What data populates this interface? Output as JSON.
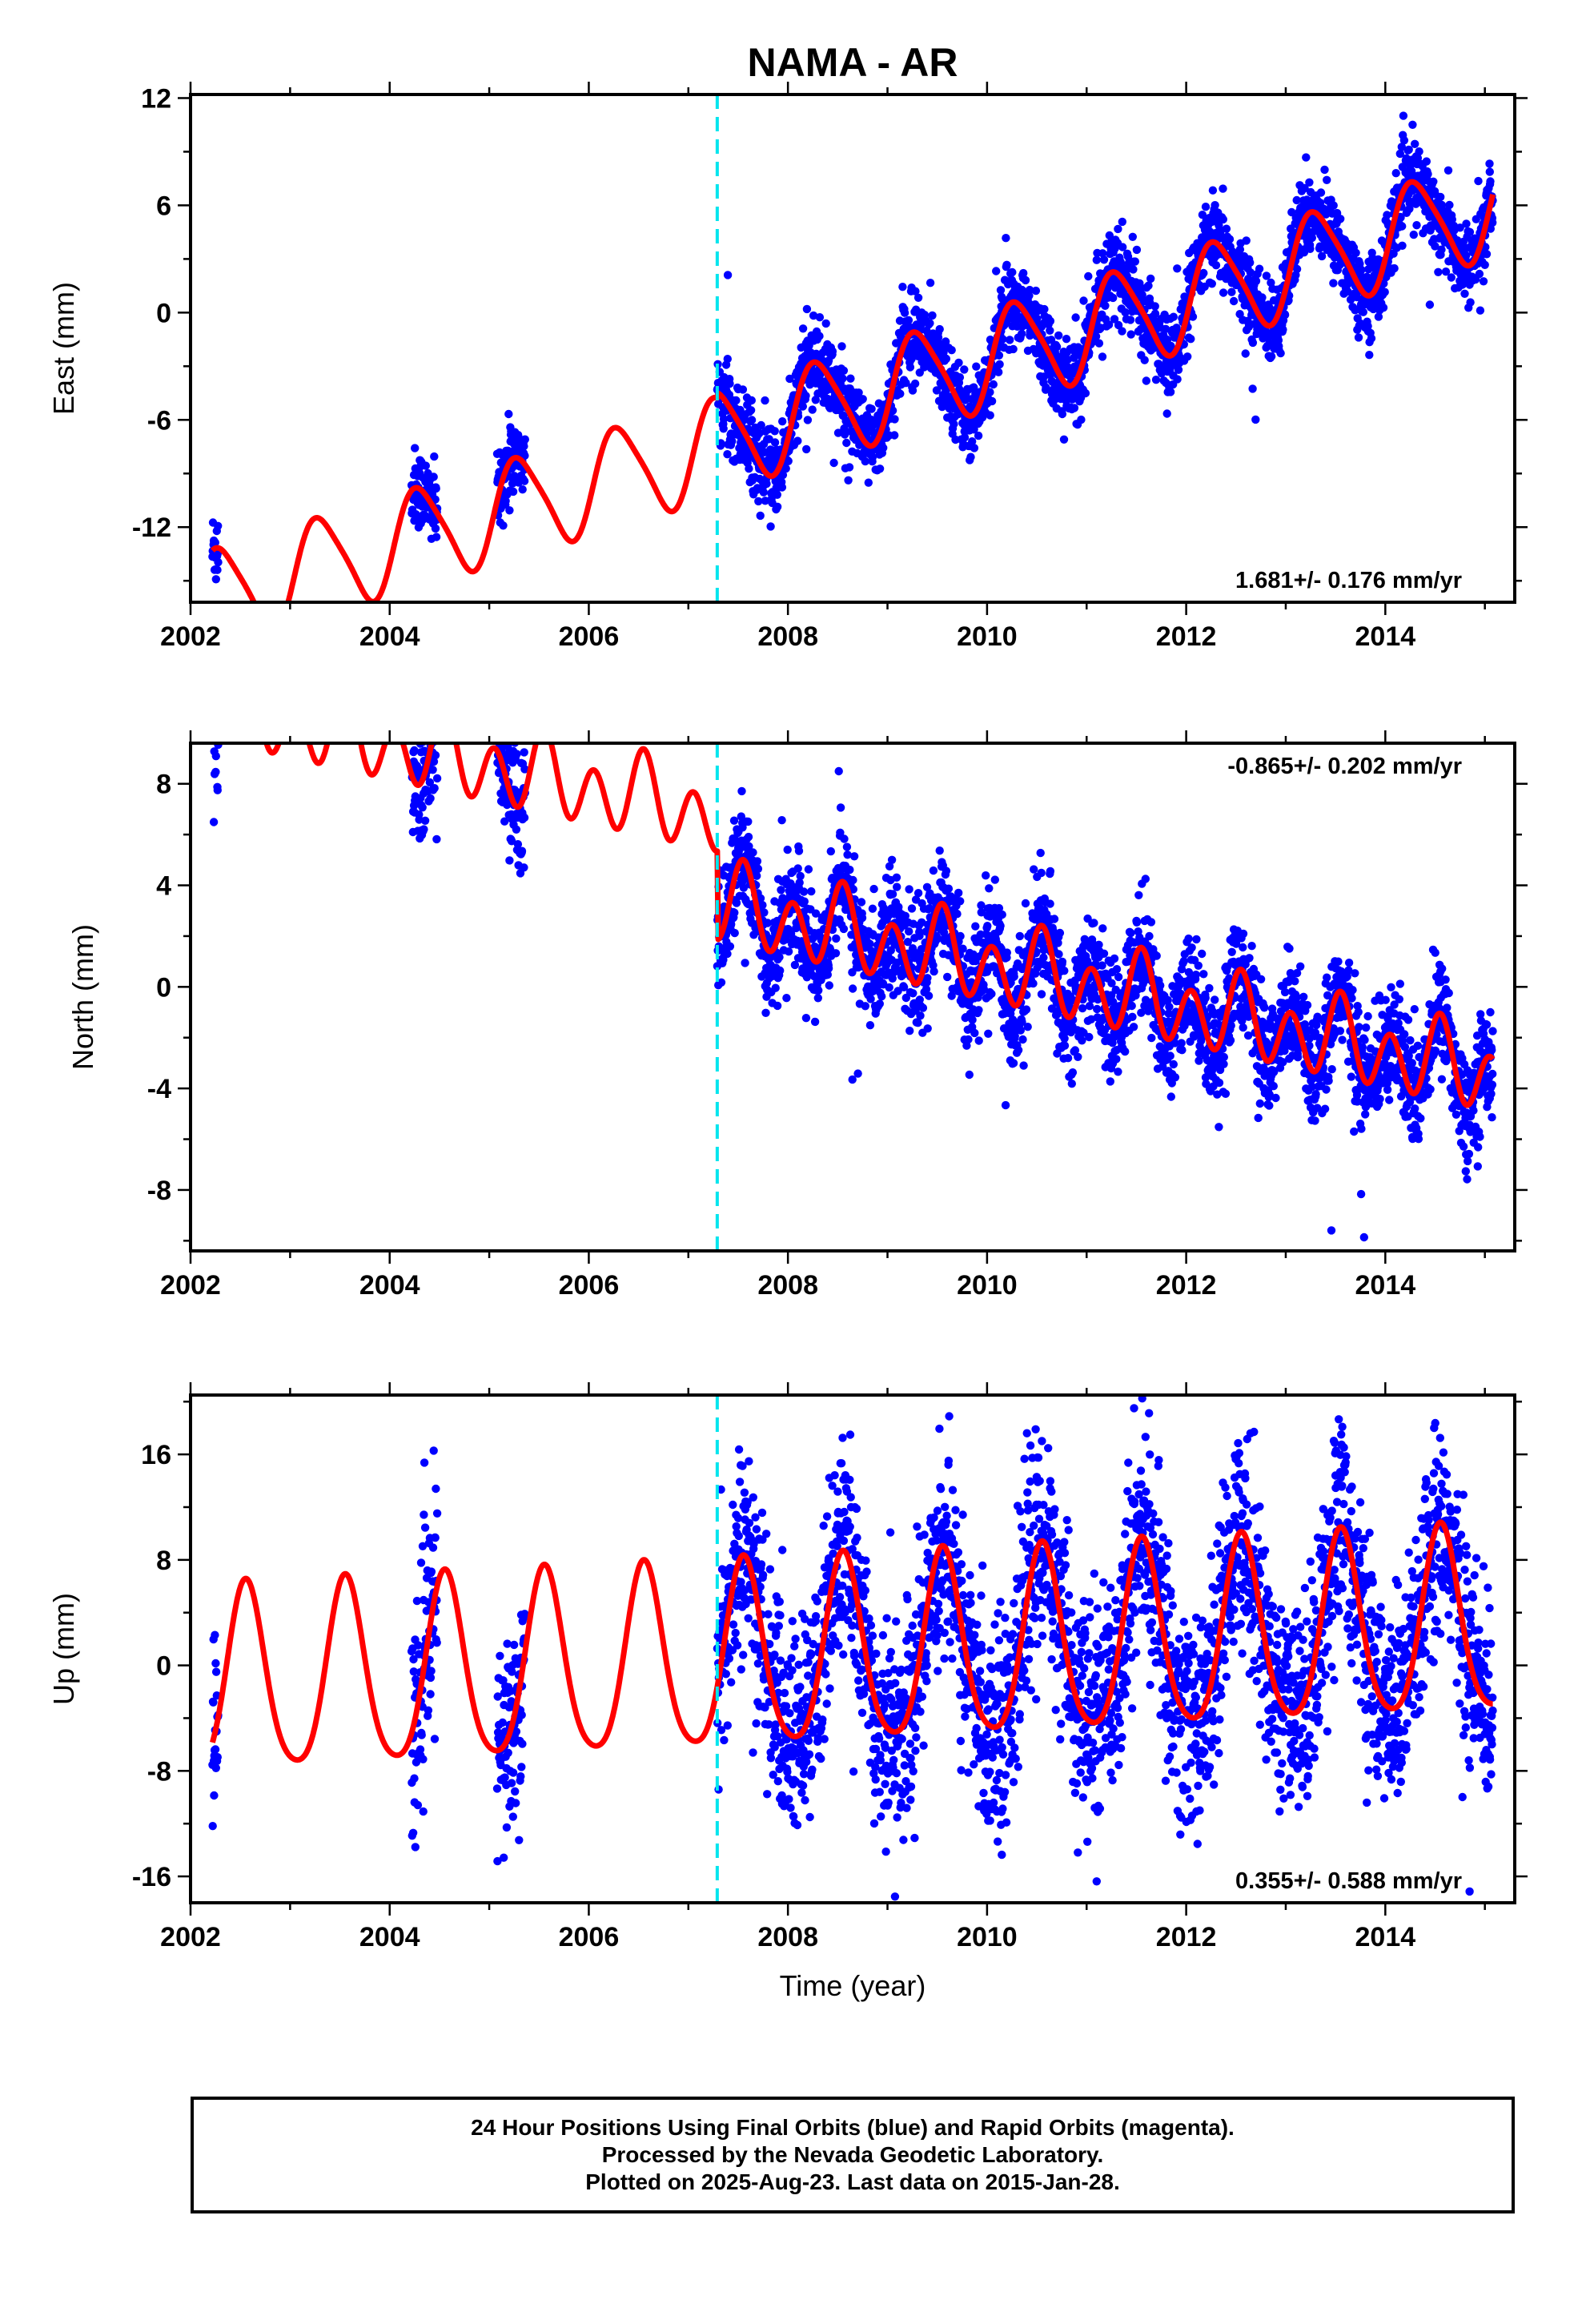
{
  "chart_data": [
    {
      "type": "scatter",
      "title": "NAMA - AR",
      "ylabel": "East (mm)",
      "xlabel": "",
      "xlim": [
        2002.0,
        2015.3
      ],
      "ylim": [
        -16.2,
        12.2
      ],
      "x_ticks": [
        2002,
        2004,
        2006,
        2008,
        2010,
        2012,
        2014
      ],
      "y_ticks": [
        -12,
        -6,
        0,
        6,
        12
      ],
      "rate_text": "1.681+/- 0.176 mm/yr",
      "rate_position": "bottom-right",
      "event_line_year": 2007.29,
      "colors": {
        "points": "#0000ff",
        "fit": "#ff0000",
        "event": "#00e5ee"
      },
      "fit_model": {
        "t0": 2010.0,
        "intercept": -2.6,
        "rate": 1.681,
        "pre_event_offset": -0.3,
        "annual_sin": 2.55,
        "annual_cos": -0.9,
        "semiannual_sin": 0.4,
        "semiannual_cos": -0.2
      },
      "data_segments": [
        {
          "start": 2002.22,
          "end": 2002.28,
          "noise": 1.1
        },
        {
          "start": 2004.22,
          "end": 2004.48,
          "noise": 1.1
        },
        {
          "start": 2005.08,
          "end": 2005.36,
          "noise": 1.1
        },
        {
          "start": 2007.29,
          "end": 2015.08,
          "noise": 1.1
        }
      ]
    },
    {
      "type": "scatter",
      "title": "",
      "ylabel": "North (mm)",
      "xlabel": "",
      "xlim": [
        2002.0,
        2015.3
      ],
      "ylim": [
        -10.4,
        9.6
      ],
      "x_ticks": [
        2002,
        2004,
        2006,
        2008,
        2010,
        2012,
        2014
      ],
      "y_ticks": [
        -8,
        -4,
        0,
        4,
        8
      ],
      "rate_text": "-0.865+/- 0.202 mm/yr",
      "rate_position": "top-right",
      "event_line_year": 2007.29,
      "colors": {
        "points": "#0000ff",
        "fit": "#ff0000",
        "event": "#00e5ee"
      },
      "fit_model": {
        "t0": 2010.0,
        "intercept": 0.9,
        "rate": -0.865,
        "pre_event_offset": 3.5,
        "annual_sin": -0.2,
        "annual_cos": -0.6,
        "semiannual_sin": 0.8,
        "semiannual_cos": 1.1
      },
      "data_segments": [
        {
          "start": 2002.22,
          "end": 2002.28,
          "noise": 1.4
        },
        {
          "start": 2004.22,
          "end": 2004.48,
          "noise": 1.4
        },
        {
          "start": 2005.08,
          "end": 2005.36,
          "noise": 1.4
        },
        {
          "start": 2007.29,
          "end": 2015.08,
          "noise": 1.1
        }
      ]
    },
    {
      "type": "scatter",
      "title": "",
      "ylabel": "Up (mm)",
      "xlabel": "Time (year)",
      "xlim": [
        2002.0,
        2015.3
      ],
      "ylim": [
        -18.0,
        20.5
      ],
      "x_ticks": [
        2002,
        2004,
        2006,
        2008,
        2010,
        2012,
        2014
      ],
      "y_ticks": [
        -16,
        -8,
        0,
        8,
        16
      ],
      "rate_text": "0.355+/- 0.588 mm/yr",
      "rate_position": "bottom-right",
      "event_line_year": 2007.29,
      "colors": {
        "points": "#0000ff",
        "fit": "#ff0000",
        "event": "#00e5ee"
      },
      "fit_model": {
        "t0": 2010.0,
        "intercept": 1.2,
        "rate": 0.355,
        "pre_event_offset": 0.0,
        "annual_sin": -2.5,
        "annual_cos": -6.5,
        "semiannual_sin": 0.6,
        "semiannual_cos": 0.9
      },
      "data_segments": [
        {
          "start": 2002.22,
          "end": 2002.28,
          "noise": 4.0
        },
        {
          "start": 2004.22,
          "end": 2004.48,
          "noise": 4.0
        },
        {
          "start": 2005.08,
          "end": 2005.36,
          "noise": 4.0
        },
        {
          "start": 2007.29,
          "end": 2015.08,
          "noise": 4.0
        }
      ]
    }
  ],
  "footer": {
    "line1": "24 Hour Positions Using Final Orbits (blue) and Rapid Orbits (magenta).",
    "line2": "Processed by the Nevada Geodetic Laboratory.",
    "line3": "Plotted on 2025-Aug-23. Last data on 2015-Jan-28."
  }
}
